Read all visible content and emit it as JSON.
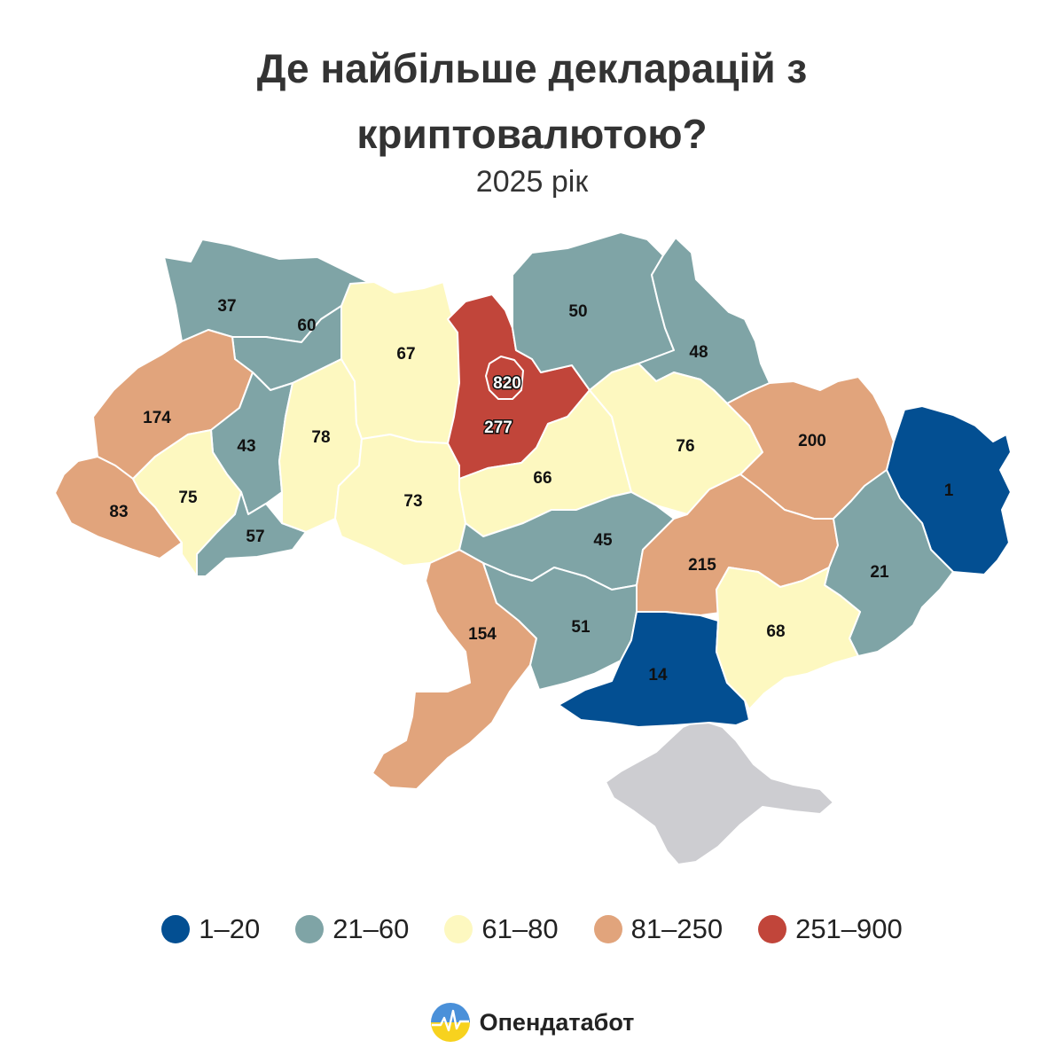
{
  "title": [
    "Де найбільше декларацій з",
    "криптовалютою?"
  ],
  "subtitle": "2025 рік",
  "colors": {
    "1-20": "#034f92",
    "21-60": "#7fa4a6",
    "61-80": "#fdf8c0",
    "81-250": "#e1a47c",
    "251-900": "#c1453a",
    "no_data": "#cdcdd1"
  },
  "legend": [
    {
      "label": "1–20",
      "color": "#034f92"
    },
    {
      "label": "21–60",
      "color": "#7fa4a6"
    },
    {
      "label": "61–80",
      "color": "#fdf8c0"
    },
    {
      "label": "81–250",
      "color": "#e1a47c"
    },
    {
      "label": "251–900",
      "color": "#c1453a"
    }
  ],
  "regions": [
    {
      "id": "volyn",
      "value": 37,
      "class": "21-60"
    },
    {
      "id": "rivne",
      "value": 60,
      "class": "21-60"
    },
    {
      "id": "lviv",
      "value": 174,
      "class": "81-250"
    },
    {
      "id": "ternopil",
      "value": 43,
      "class": "21-60"
    },
    {
      "id": "zakarpattia",
      "value": 83,
      "class": "81-250"
    },
    {
      "id": "ivano-frankivsk",
      "value": 75,
      "class": "61-80"
    },
    {
      "id": "chernivtsi",
      "value": 57,
      "class": "21-60"
    },
    {
      "id": "khmelnytskyi",
      "value": 78,
      "class": "61-80"
    },
    {
      "id": "zhytomyr",
      "value": 67,
      "class": "61-80"
    },
    {
      "id": "vinnytsia",
      "value": 73,
      "class": "61-80"
    },
    {
      "id": "kyiv-city",
      "value": 820,
      "class": "251-900"
    },
    {
      "id": "kyiv-oblast",
      "value": 277,
      "class": "251-900"
    },
    {
      "id": "chernihiv",
      "value": 50,
      "class": "21-60"
    },
    {
      "id": "sumy",
      "value": 48,
      "class": "21-60"
    },
    {
      "id": "cherkasy",
      "value": 66,
      "class": "61-80"
    },
    {
      "id": "poltava",
      "value": 76,
      "class": "61-80"
    },
    {
      "id": "kharkiv",
      "value": 200,
      "class": "81-250"
    },
    {
      "id": "luhansk",
      "value": 1,
      "class": "1-20"
    },
    {
      "id": "kirovohrad",
      "value": 45,
      "class": "21-60"
    },
    {
      "id": "dnipropetrovsk",
      "value": 215,
      "class": "81-250"
    },
    {
      "id": "donetsk",
      "value": 21,
      "class": "21-60"
    },
    {
      "id": "odesa",
      "value": 154,
      "class": "81-250"
    },
    {
      "id": "mykolaiv",
      "value": 51,
      "class": "21-60"
    },
    {
      "id": "kherson",
      "value": 14,
      "class": "1-20"
    },
    {
      "id": "zaporizhzhia",
      "value": 68,
      "class": "61-80"
    },
    {
      "id": "crimea",
      "value": null,
      "class": "no_data"
    }
  ],
  "brand": {
    "name": "Опендатабот",
    "logo_icon": "opendatabot-logo"
  }
}
